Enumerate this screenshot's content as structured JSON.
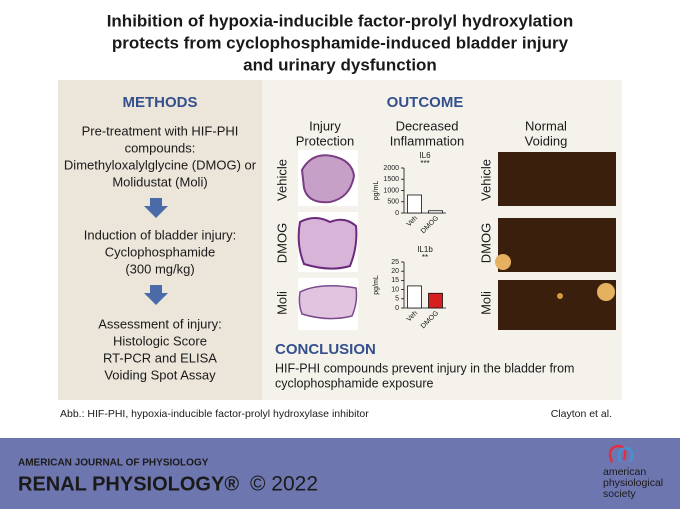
{
  "title": [
    "Inhibition of hypoxia-inducible factor-prolyl hydroxylation",
    "protects from cyclophosphamide-induced bladder injury",
    "and urinary dysfunction"
  ],
  "methods": {
    "heading": "METHODS",
    "steps": [
      [
        "Pre-treatment with HIF-PHI",
        "compounds:",
        "Dimethyloxalylglycine (DMOG) or",
        "Molidustat (Moli)"
      ],
      [
        "Induction of bladder injury:",
        "Cyclophosphamide",
        "(300 mg/kg)"
      ],
      [
        "Assessment of injury:",
        "Histologic Score",
        "RT-PCR and ELISA",
        "Voiding Spot Assay"
      ]
    ]
  },
  "outcome": {
    "heading": "OUTCOME",
    "columns": [
      [
        "Injury",
        "Protection"
      ],
      [
        "Decreased",
        "Inflammation"
      ],
      [
        "Normal",
        "Voiding"
      ]
    ],
    "rows": [
      "Vehicle",
      "DMOG",
      "Moli"
    ]
  },
  "charts": [
    {
      "type": "bar",
      "title": "IL6",
      "y_label": "pg/mL",
      "categories": [
        "Veh",
        "DMOG"
      ],
      "values": [
        800,
        100
      ],
      "colors": [
        "#ffffff",
        "#ffffff"
      ],
      "ylim": [
        0,
        2000
      ],
      "yticks": [
        0,
        500,
        1000,
        1500,
        2000
      ],
      "significance": "***"
    },
    {
      "type": "bar",
      "title": "IL1b",
      "y_label": "pg/mL",
      "categories": [
        "Veh",
        "DMOG"
      ],
      "values": [
        12,
        8
      ],
      "colors": [
        "#ffffff",
        "#d62020"
      ],
      "ylim": [
        0,
        25
      ],
      "yticks": [
        0,
        5,
        10,
        15,
        20,
        25
      ],
      "significance": "**"
    }
  ],
  "conclusion": {
    "heading": "CONCLUSION",
    "lines": [
      "HIF-PHI compounds prevent injury in the bladder from",
      "cyclophosphamide exposure"
    ]
  },
  "footnote": "Abb.: HIF-PHI, hypoxia-inducible factor-prolyl hydroxylase inhibitor",
  "credit": "Clayton et al.",
  "banner": {
    "journal": "AMERICAN JOURNAL OF PHYSIOLOGY",
    "section": "RENAL PHYSIOLOGY®",
    "year": "© 2022",
    "society": [
      "american",
      "physiological",
      "society"
    ]
  }
}
